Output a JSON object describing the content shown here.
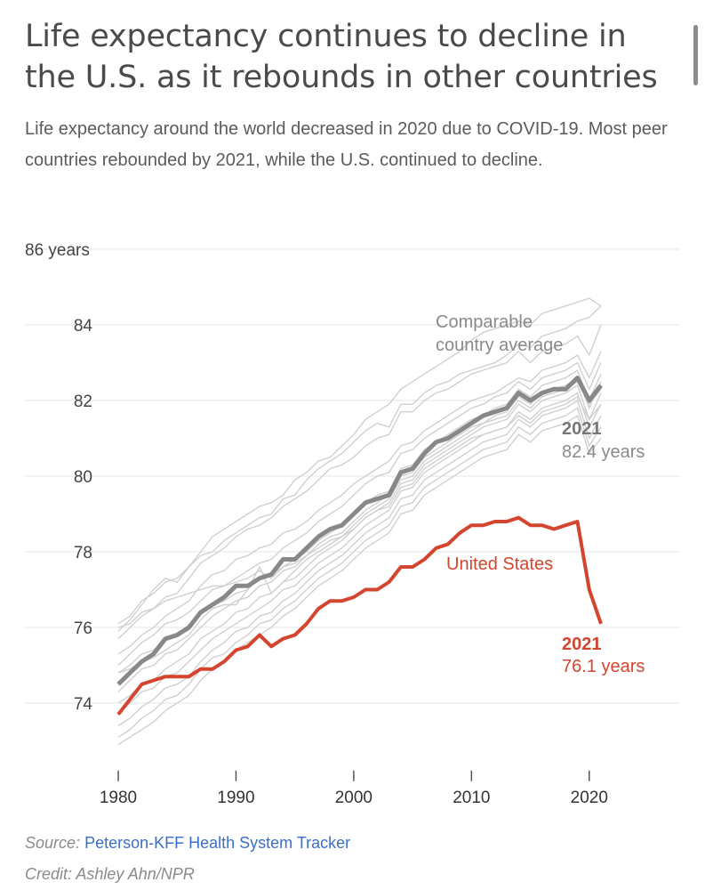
{
  "title": "Life expectancy continues to decline in the U.S. as it rebounds in other countries",
  "subtitle": "Life expectancy around the world decreased in 2020 due to COVID-19. Most peer countries rebounded by 2021, while the U.S. continued to decline.",
  "source_label": "Source:",
  "source_name": "Peterson-KFF Health System Tracker",
  "credit": "Credit: Ashley Ahn/NPR",
  "colors": {
    "us": "#d3452f",
    "average": "#888888",
    "peer": "#d0d0d0",
    "grid": "#e6e6e6"
  },
  "chart_data": {
    "type": "line",
    "title": "Life expectancy continues to decline in the U.S. as it rebounds in other countries",
    "xlabel": "",
    "ylabel": "years",
    "xlim": [
      1980,
      2025
    ],
    "ylim": [
      72.5,
      86
    ],
    "x_ticks": [
      1980,
      1990,
      2000,
      2010,
      2020
    ],
    "y_ticks": [
      {
        "value": 74,
        "label": "74"
      },
      {
        "value": 76,
        "label": "76"
      },
      {
        "value": 78,
        "label": "78"
      },
      {
        "value": 80,
        "label": "80"
      },
      {
        "value": 82,
        "label": "82"
      },
      {
        "value": 84,
        "label": "84"
      },
      {
        "value": 86,
        "label": "86 years"
      }
    ],
    "x": [
      1980,
      1981,
      1982,
      1983,
      1984,
      1985,
      1986,
      1987,
      1988,
      1989,
      1990,
      1991,
      1992,
      1993,
      1994,
      1995,
      1996,
      1997,
      1998,
      1999,
      2000,
      2001,
      2002,
      2003,
      2004,
      2005,
      2006,
      2007,
      2008,
      2009,
      2010,
      2011,
      2012,
      2013,
      2014,
      2015,
      2016,
      2017,
      2018,
      2019,
      2020,
      2021
    ],
    "series": [
      {
        "name": "Comparable country average",
        "values": [
          74.5,
          74.8,
          75.1,
          75.3,
          75.7,
          75.8,
          76.0,
          76.4,
          76.6,
          76.8,
          77.1,
          77.1,
          77.3,
          77.4,
          77.8,
          77.8,
          78.1,
          78.4,
          78.6,
          78.7,
          79.0,
          79.3,
          79.4,
          79.5,
          80.1,
          80.2,
          80.6,
          80.9,
          81.0,
          81.2,
          81.4,
          81.6,
          81.7,
          81.8,
          82.2,
          82.0,
          82.2,
          82.3,
          82.3,
          82.6,
          82.0,
          82.4
        ]
      },
      {
        "name": "United States",
        "values": [
          73.7,
          74.1,
          74.5,
          74.6,
          74.7,
          74.7,
          74.7,
          74.9,
          74.9,
          75.1,
          75.4,
          75.5,
          75.8,
          75.5,
          75.7,
          75.8,
          76.1,
          76.5,
          76.7,
          76.7,
          76.8,
          77.0,
          77.0,
          77.2,
          77.6,
          77.6,
          77.8,
          78.1,
          78.2,
          78.5,
          78.7,
          78.7,
          78.8,
          78.8,
          78.9,
          78.7,
          78.7,
          78.6,
          78.7,
          78.8,
          77.0,
          76.1
        ]
      }
    ],
    "peer_countries": [
      [
        76.1,
        76.3,
        76.7,
        76.9,
        77.2,
        77.3,
        77.6,
        77.9,
        78.0,
        78.3,
        78.5,
        78.7,
        78.9,
        79.0,
        79.4,
        79.5,
        79.9,
        80.2,
        80.4,
        80.6,
        80.9,
        81.2,
        81.4,
        81.3,
        81.9,
        81.9,
        82.2,
        82.4,
        82.5,
        82.7,
        82.8,
        82.9,
        83.0,
        83.2,
        83.5,
        83.4,
        83.7,
        83.8,
        83.9,
        84.1,
        84.2,
        84.5
      ],
      [
        75.9,
        76.2,
        76.6,
        77.0,
        77.3,
        77.2,
        77.6,
        78.0,
        78.4,
        78.6,
        78.8,
        79.0,
        79.2,
        79.3,
        79.5,
        79.9,
        80.1,
        80.4,
        80.5,
        80.8,
        81.1,
        81.5,
        81.7,
        81.9,
        82.3,
        82.5,
        82.7,
        82.9,
        83.1,
        83.3,
        83.6,
        83.8,
        83.9,
        84.0,
        84.1,
        84.0,
        84.3,
        84.4,
        84.5,
        84.6,
        84.7,
        84.5
      ],
      [
        75.7,
        76.0,
        76.3,
        76.5,
        76.8,
        76.9,
        77.3,
        77.7,
        77.9,
        78.1,
        78.4,
        78.6,
        78.7,
        78.9,
        79.2,
        79.4,
        79.6,
        79.9,
        80.2,
        80.3,
        80.5,
        80.8,
        81.0,
        81.1,
        81.7,
        81.7,
        82.0,
        82.2,
        82.3,
        82.5,
        82.7,
        82.8,
        82.9,
        83.0,
        83.3,
        83.0,
        83.3,
        83.4,
        83.5,
        83.7,
        83.2,
        84.0
      ],
      [
        75.3,
        75.5,
        75.8,
        76.0,
        76.3,
        76.5,
        76.7,
        77.1,
        77.4,
        77.5,
        77.8,
        77.9,
        78.1,
        78.2,
        78.5,
        78.6,
        78.8,
        79.1,
        79.3,
        79.5,
        79.8,
        80.0,
        80.2,
        80.4,
        80.8,
        80.9,
        81.2,
        81.4,
        81.6,
        81.8,
        82.0,
        82.1,
        82.2,
        82.4,
        82.6,
        82.5,
        82.8,
        82.9,
        83.0,
        83.2,
        82.6,
        83.3
      ],
      [
        75.0,
        75.3,
        75.6,
        75.8,
        76.1,
        76.2,
        76.4,
        76.7,
        77.0,
        77.1,
        77.3,
        77.5,
        77.7,
        77.8,
        78.1,
        78.3,
        78.5,
        78.8,
        79.0,
        79.2,
        79.5,
        79.8,
        80.0,
        80.1,
        80.6,
        80.7,
        81.0,
        81.2,
        81.4,
        81.6,
        81.8,
        81.9,
        82.1,
        82.2,
        82.5,
        82.3,
        82.6,
        82.7,
        82.8,
        83.0,
        82.3,
        83.0
      ],
      [
        74.8,
        75.0,
        75.3,
        75.4,
        75.7,
        75.8,
        76.0,
        76.4,
        76.6,
        76.7,
        76.9,
        77.0,
        77.3,
        77.4,
        77.6,
        77.8,
        78.0,
        78.3,
        78.5,
        78.7,
        79.0,
        79.3,
        79.5,
        79.6,
        80.2,
        80.3,
        80.7,
        80.9,
        81.1,
        81.3,
        81.5,
        81.6,
        81.8,
        81.9,
        82.3,
        82.1,
        82.4,
        82.5,
        82.6,
        82.8,
        82.0,
        82.7
      ],
      [
        74.3,
        74.6,
        74.9,
        75.0,
        75.3,
        75.4,
        75.7,
        76.0,
        76.3,
        76.5,
        76.7,
        76.8,
        77.1,
        77.2,
        77.5,
        77.6,
        77.9,
        78.2,
        78.4,
        78.5,
        78.8,
        79.1,
        79.3,
        79.5,
        80.0,
        80.1,
        80.5,
        80.7,
        80.9,
        81.1,
        81.3,
        81.4,
        81.6,
        81.7,
        82.1,
        81.9,
        82.2,
        82.3,
        82.4,
        82.6,
        81.8,
        82.5
      ],
      [
        74.0,
        74.2,
        74.5,
        74.6,
        74.9,
        75.1,
        75.3,
        75.7,
        75.9,
        76.1,
        76.4,
        76.5,
        76.8,
        76.9,
        77.2,
        77.3,
        77.6,
        77.9,
        78.1,
        78.3,
        78.6,
        78.9,
        79.1,
        79.3,
        79.8,
        79.9,
        80.3,
        80.5,
        80.7,
        80.9,
        81.1,
        81.3,
        81.4,
        81.5,
        81.9,
        81.7,
        82.0,
        82.1,
        82.2,
        82.4,
        81.5,
        82.2
      ],
      [
        73.7,
        74.0,
        74.3,
        74.4,
        74.7,
        74.8,
        75.1,
        75.4,
        75.7,
        75.9,
        76.1,
        76.3,
        76.5,
        76.7,
        77.0,
        77.1,
        77.4,
        77.7,
        77.9,
        78.1,
        78.4,
        78.7,
        78.9,
        79.1,
        79.6,
        79.7,
        80.1,
        80.3,
        80.5,
        80.7,
        80.9,
        81.1,
        81.2,
        81.3,
        81.7,
        81.5,
        81.8,
        81.9,
        82.0,
        82.2,
        81.3,
        81.9
      ],
      [
        73.4,
        73.6,
        73.9,
        74.1,
        74.4,
        74.5,
        74.7,
        75.1,
        75.4,
        75.6,
        75.9,
        76.0,
        76.3,
        76.4,
        76.7,
        76.9,
        77.2,
        77.5,
        77.7,
        77.9,
        78.2,
        78.5,
        78.7,
        78.9,
        79.4,
        79.5,
        79.9,
        80.1,
        80.3,
        80.5,
        80.7,
        80.9,
        81.0,
        81.1,
        81.5,
        81.3,
        81.6,
        81.7,
        81.8,
        82.0,
        81.0,
        81.6
      ],
      [
        73.1,
        73.3,
        73.6,
        73.8,
        74.1,
        74.2,
        74.5,
        74.9,
        75.2,
        75.3,
        75.6,
        75.8,
        76.1,
        76.2,
        76.5,
        76.7,
        77.0,
        77.3,
        77.5,
        77.7,
        78.0,
        78.3,
        78.5,
        78.7,
        79.2,
        79.3,
        79.7,
        79.9,
        80.1,
        80.3,
        80.5,
        80.7,
        80.8,
        80.9,
        81.3,
        81.1,
        81.4,
        81.5,
        81.6,
        81.8,
        80.8,
        81.3
      ],
      [
        72.9,
        73.1,
        73.3,
        73.5,
        73.8,
        74.0,
        74.2,
        74.6,
        74.9,
        75.1,
        75.4,
        75.6,
        75.8,
        76.0,
        76.3,
        76.5,
        76.8,
        77.1,
        77.3,
        77.5,
        77.8,
        78.1,
        78.3,
        78.5,
        79.0,
        79.1,
        79.5,
        79.7,
        79.9,
        80.1,
        80.3,
        80.5,
        80.6,
        80.7,
        81.1,
        80.9,
        81.2,
        81.3,
        81.4,
        81.6,
        80.6,
        81.0
      ],
      [
        76.0,
        76.1,
        76.4,
        76.5,
        76.7,
        76.8,
        76.9,
        77.0,
        77.1,
        77.1,
        77.2,
        77.3,
        77.5,
        77.3,
        77.6,
        77.7,
        77.9,
        78.1,
        78.3,
        78.4,
        78.6,
        78.9,
        79.1,
        79.2,
        79.7,
        79.8,
        80.2,
        80.4,
        80.6,
        80.8,
        81.0,
        81.1,
        81.2,
        81.3,
        81.6,
        81.4,
        81.7,
        81.8,
        81.9,
        82.1,
        81.5,
        81.9
      ],
      [
        74.8,
        74.9,
        75.1,
        75.2,
        75.4,
        75.6,
        75.8,
        76.2,
        76.5,
        76.6,
        76.6,
        77.0,
        77.6,
        76.9,
        77.2,
        77.5,
        77.8,
        78.0,
        78.2,
        78.4,
        78.7,
        79.0,
        79.2,
        79.4,
        79.9,
        80.0,
        80.4,
        80.6,
        80.8,
        81.0,
        81.2,
        81.4,
        81.5,
        81.6,
        82.0,
        81.8,
        82.1,
        82.2,
        82.3,
        82.5,
        81.9,
        82.3
      ]
    ],
    "annotations": {
      "average_label_1": "Comparable",
      "average_label_2": "country average",
      "average_year": "2021",
      "average_value": "82.4 years",
      "us_label": "United States",
      "us_year": "2021",
      "us_value": "76.1 years"
    }
  }
}
